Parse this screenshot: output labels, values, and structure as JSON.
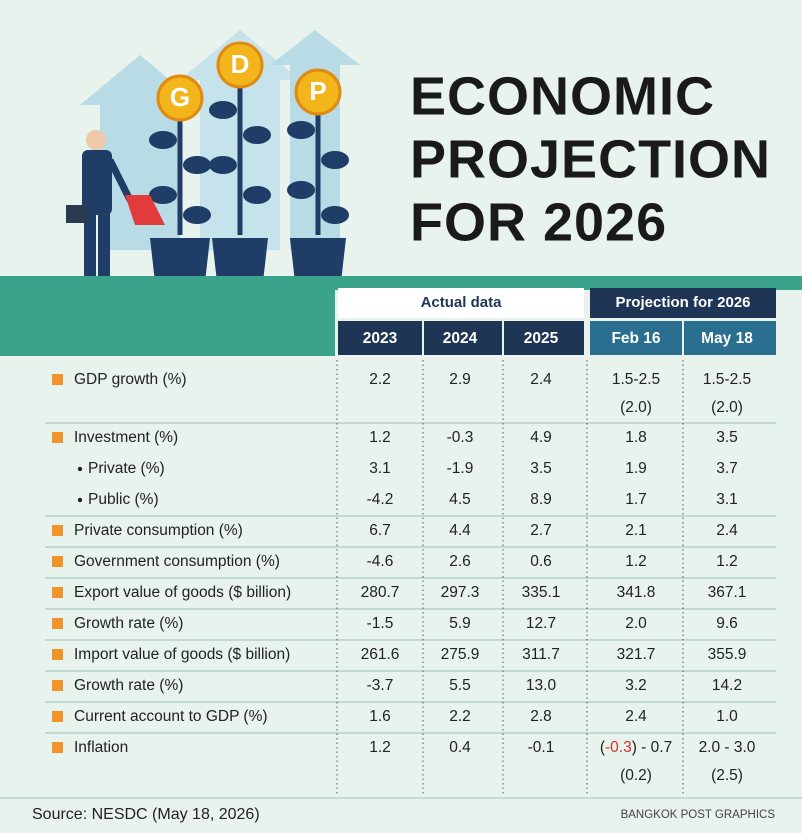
{
  "title": [
    "ECONOMIC",
    "PROJECTION",
    "FOR 2026"
  ],
  "illustration": {
    "coins": [
      "G",
      "D",
      "P"
    ]
  },
  "table": {
    "groups": [
      "Actual data",
      "Projection for 2026"
    ],
    "columns": [
      "2023",
      "2024",
      "2025",
      "Feb 16",
      "May 18"
    ],
    "rows": [
      {
        "label": "GDP growth (%)",
        "values": [
          "2.2",
          "2.9",
          "2.4",
          "1.5-2.5",
          "1.5-2.5"
        ],
        "notes": {
          "3": "(2.0)",
          "4": "(2.0)"
        }
      },
      {
        "label": "Investment (%)",
        "values": [
          "1.2",
          "-0.3",
          "4.9",
          "1.8",
          "3.5"
        ]
      },
      {
        "label": "Private (%)",
        "sub": true,
        "values": [
          "3.1",
          "-1.9",
          "3.5",
          "1.9",
          "3.7"
        ]
      },
      {
        "label": "Public (%)",
        "sub": true,
        "values": [
          "-4.2",
          "4.5",
          "8.9",
          "1.7",
          "3.1"
        ]
      },
      {
        "label": "Private consumption (%)",
        "values": [
          "6.7",
          "4.4",
          "2.7",
          "2.1",
          "2.4"
        ]
      },
      {
        "label": "Government consumption (%)",
        "values": [
          "-4.6",
          "2.6",
          "0.6",
          "1.2",
          "1.2"
        ]
      },
      {
        "label": "Export value of goods ($ billion)",
        "values": [
          "280.7",
          "297.3",
          "335.1",
          "341.8",
          "367.1"
        ]
      },
      {
        "label": "Growth rate (%)",
        "values": [
          "-1.5",
          "5.9",
          "12.7",
          "2.0",
          "9.6"
        ]
      },
      {
        "label": "Import value of goods ($ billion)",
        "values": [
          "261.6",
          "275.9",
          "311.7",
          "321.7",
          "355.9"
        ]
      },
      {
        "label": "Growth rate (%)",
        "values": [
          "-3.7",
          "5.5",
          "13.0",
          "3.2",
          "14.2"
        ]
      },
      {
        "label": "Current account to GDP (%)",
        "values": [
          "1.6",
          "2.2",
          "2.8",
          "2.4",
          "1.0"
        ]
      },
      {
        "label": "Inflation",
        "values": [
          "1.2",
          "0.4",
          "-0.1",
          [
            "(",
            "-0.3",
            ") - 0.7"
          ],
          "2.0 - 3.0"
        ],
        "notes": {
          "3": "(0.2)",
          "4": "(2.5)"
        }
      }
    ]
  },
  "footer": {
    "source": "Source: NESDC (May 18, 2026)",
    "credit": "BANGKOK POST GRAPHICS"
  }
}
